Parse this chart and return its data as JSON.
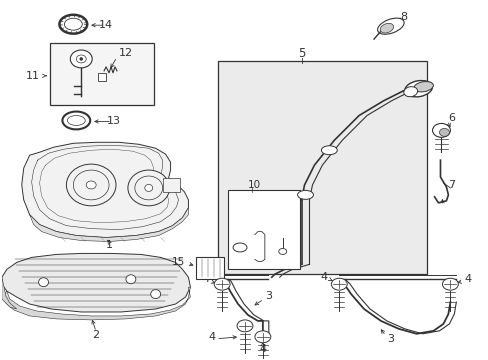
{
  "background": "#ffffff",
  "lc": "#333333",
  "fc_tank": "#f2f2f2",
  "fc_shield": "#ebebeb",
  "fc_box": "#e8e8e8",
  "layout": {
    "figw": 4.89,
    "figh": 3.6,
    "dpi": 100
  }
}
